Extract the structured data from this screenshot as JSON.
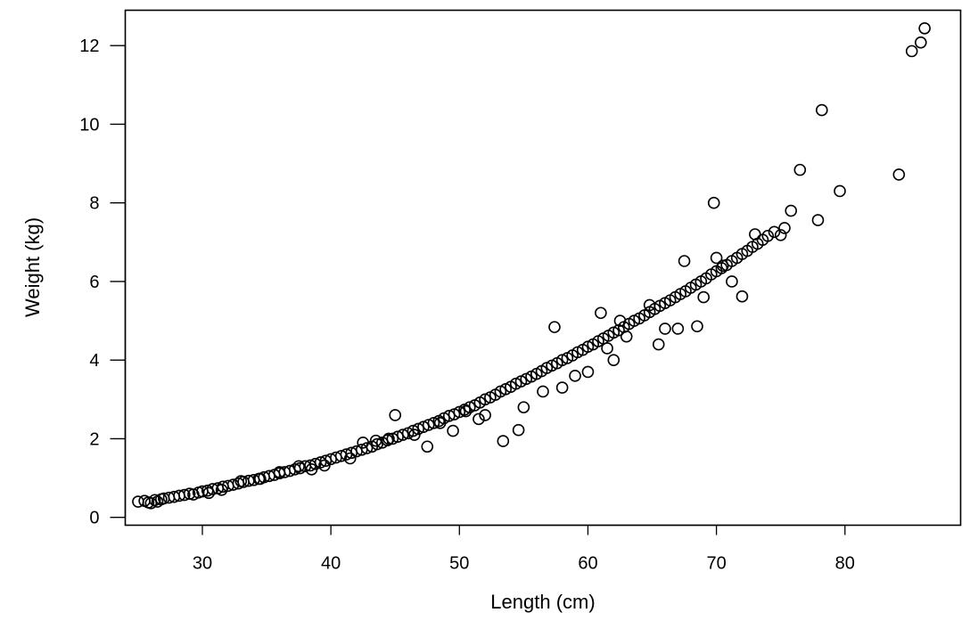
{
  "chart_data": {
    "type": "scatter",
    "title": "",
    "xlabel": "Length (cm)",
    "ylabel": "Weight (kg)",
    "xlim": [
      24,
      89
    ],
    "ylim": [
      -0.2,
      12.9
    ],
    "xticks": [
      30,
      40,
      50,
      60,
      70,
      80
    ],
    "yticks": [
      0,
      2,
      4,
      6,
      8,
      10,
      12
    ],
    "grid": false,
    "legend": "none",
    "marker": "open-circle",
    "marker_color": "#000000",
    "series": [
      {
        "x": [
          25.0,
          25.5,
          25.8,
          26.0,
          26.3,
          26.5,
          26.8,
          27.0,
          27.4,
          27.8,
          28.2,
          28.6,
          29.0,
          29.3,
          29.7,
          30.0,
          30.4,
          30.8,
          31.2,
          31.6,
          32.0,
          32.4,
          32.8,
          33.2,
          33.6,
          34.0,
          34.4,
          34.8,
          35.2,
          35.6,
          36.0,
          36.4,
          36.8,
          37.2,
          37.6,
          38.0,
          38.4,
          38.8,
          39.2,
          39.6,
          40.0,
          40.4,
          40.8,
          41.2,
          41.6,
          42.0,
          42.4,
          42.8,
          43.2,
          43.6,
          44.0,
          44.4,
          44.8,
          45.2,
          45.6,
          46.0,
          46.4,
          46.8,
          47.2,
          47.6,
          48.0,
          48.4,
          48.8,
          49.2,
          49.6,
          50.0,
          50.4,
          50.8,
          51.2,
          51.6,
          52.0,
          52.4,
          52.8,
          53.2,
          53.6,
          54.0,
          54.4,
          54.8,
          55.2,
          55.6,
          56.0,
          56.4,
          56.8,
          57.2,
          57.6,
          58.0,
          58.4,
          58.8,
          59.2,
          59.6,
          60.0,
          60.4,
          60.8,
          61.2,
          61.6,
          62.0,
          62.4,
          62.8,
          63.2,
          63.6,
          64.0,
          64.4,
          64.8,
          65.2,
          65.6,
          66.0,
          66.4,
          66.8,
          67.2,
          67.6,
          68.0,
          68.4,
          68.8,
          69.2,
          69.6,
          70.0,
          70.4,
          70.8,
          71.2,
          71.6,
          72.0,
          72.4,
          72.8,
          73.2,
          73.6,
          74.0,
          74.5,
          75.0,
          75.3,
          75.8,
          76.5,
          77.9,
          78.2,
          79.6,
          84.2,
          85.2,
          85.9,
          86.2,
          45.0,
          53.4,
          54.6,
          57.4,
          61.0,
          64.8,
          67.5,
          69.8,
          71.2,
          72.0,
          52.0,
          58.0,
          60.0,
          62.0,
          63.0,
          66.0,
          68.5,
          69.0,
          70.5,
          73.0,
          55.0,
          56.5,
          59.0,
          61.5,
          62.5,
          65.5,
          67.0,
          70.0,
          33.0,
          36.0,
          38.5,
          41.5,
          43.5,
          46.5,
          48.5,
          50.5,
          30.5,
          31.5,
          34.5,
          37.5,
          39.5,
          42.5,
          44.5,
          47.5,
          49.5,
          51.5
        ],
        "y": [
          0.4,
          0.42,
          0.38,
          0.36,
          0.44,
          0.4,
          0.46,
          0.48,
          0.5,
          0.52,
          0.55,
          0.57,
          0.6,
          0.58,
          0.63,
          0.66,
          0.68,
          0.72,
          0.74,
          0.78,
          0.8,
          0.83,
          0.86,
          0.9,
          0.93,
          0.95,
          0.98,
          1.02,
          1.05,
          1.08,
          1.12,
          1.15,
          1.18,
          1.22,
          1.25,
          1.3,
          1.32,
          1.36,
          1.4,
          1.44,
          1.48,
          1.52,
          1.56,
          1.6,
          1.64,
          1.68,
          1.72,
          1.76,
          1.8,
          1.86,
          1.9,
          1.96,
          2.0,
          2.05,
          2.1,
          2.14,
          2.2,
          2.25,
          2.3,
          2.35,
          2.4,
          2.45,
          2.52,
          2.58,
          2.62,
          2.68,
          2.74,
          2.8,
          2.85,
          2.92,
          3.0,
          3.05,
          3.12,
          3.2,
          3.26,
          3.32,
          3.4,
          3.46,
          3.52,
          3.58,
          3.65,
          3.72,
          3.8,
          3.86,
          3.92,
          4.0,
          4.05,
          4.12,
          4.2,
          4.26,
          4.34,
          4.4,
          4.48,
          4.55,
          4.62,
          4.7,
          4.76,
          4.84,
          4.92,
          5.0,
          5.06,
          5.14,
          5.22,
          5.3,
          5.38,
          5.45,
          5.52,
          5.6,
          5.68,
          5.75,
          5.84,
          5.92,
          6.0,
          6.08,
          6.18,
          6.26,
          6.34,
          6.42,
          6.52,
          6.6,
          6.7,
          6.78,
          6.88,
          6.96,
          7.06,
          7.16,
          7.26,
          7.18,
          7.36,
          7.8,
          8.84,
          7.56,
          10.36,
          8.3,
          8.72,
          11.86,
          12.08,
          12.44,
          2.6,
          1.94,
          2.22,
          4.84,
          5.2,
          5.4,
          6.52,
          8.0,
          6.0,
          5.62,
          2.6,
          3.3,
          3.7,
          4.0,
          4.6,
          4.8,
          4.86,
          5.6,
          6.4,
          7.2,
          2.8,
          3.2,
          3.6,
          4.3,
          5.0,
          4.4,
          4.8,
          6.6,
          0.92,
          1.15,
          1.22,
          1.5,
          1.95,
          2.1,
          2.4,
          2.7,
          0.62,
          0.7,
          0.98,
          1.3,
          1.32,
          1.9,
          2.0,
          1.8,
          2.2,
          2.5
        ]
      }
    ]
  }
}
